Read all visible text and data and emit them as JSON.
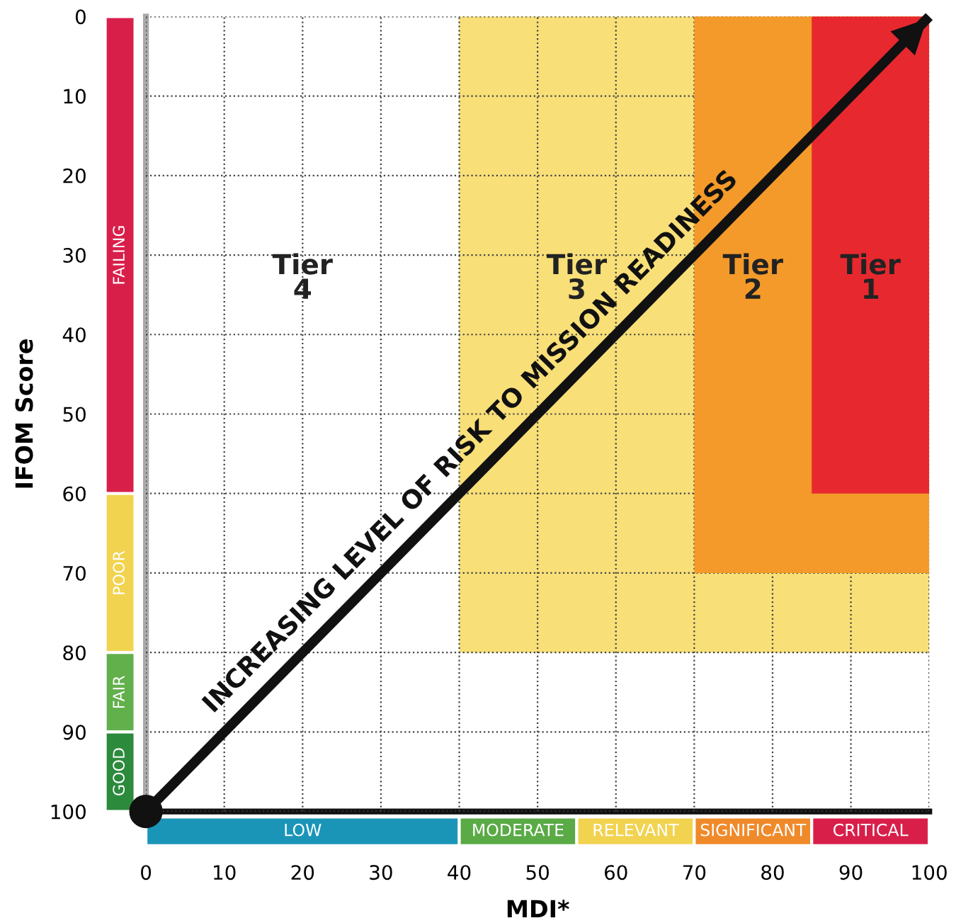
{
  "chart_data": {
    "type": "area",
    "xlabel": "MDI*",
    "ylabel": "IFOM Score",
    "xlim": [
      0,
      100
    ],
    "ylim": [
      100,
      0
    ],
    "xticks": [
      0,
      10,
      20,
      30,
      40,
      50,
      60,
      70,
      80,
      90,
      100
    ],
    "yticks": [
      0,
      10,
      20,
      30,
      40,
      50,
      60,
      70,
      80,
      90,
      100
    ],
    "grid": true,
    "series": [
      {
        "x": [
          40,
          100
        ],
        "values": [
          80,
          80
        ],
        "color": "#f8df78"
      },
      {
        "x": [
          70,
          100
        ],
        "values": [
          70,
          70
        ],
        "color": "#f39a2a"
      },
      {
        "x": [
          85,
          100
        ],
        "values": [
          60,
          60
        ],
        "color": "#e8282f"
      },
      {
        "type": "line",
        "x": [
          0,
          100
        ],
        "values": [
          100,
          0
        ],
        "color": "#111111",
        "marker": "circle",
        "line_style": "solid"
      }
    ],
    "annotations": [
      "Tier\n4",
      "Tier\n3",
      "Tier\n2",
      "Tier\n1",
      {
        "text": "INCREASING LEVEL OF RISK TO MISSION READINESS",
        "x": 44,
        "y": 56
      },
      "FAILING",
      "POOR",
      "FAIR",
      "GOOD",
      "LOW",
      "MODERATE",
      "RELEVANT",
      "SIGNIFICANT",
      "CRITICAL"
    ]
  }
}
